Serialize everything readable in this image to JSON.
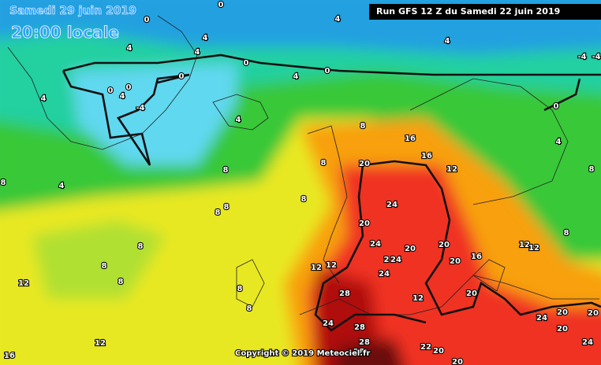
{
  "header": {
    "date": "Samedi 29 juin 2019",
    "time": "20:00 locale",
    "run": "Run GFS 12 Z du Samedi 22 juin 2019"
  },
  "footer": {
    "copyright": "Copyright © 2019 Meteociel.fr"
  },
  "contour_labels": [
    "0",
    "0",
    "4",
    "4",
    "4",
    "4",
    "4",
    "-4",
    "-4",
    "0",
    "0",
    "4",
    "0",
    "0",
    "0",
    "4",
    "-4",
    "4",
    "4",
    "8",
    "16",
    "0",
    "4",
    "8",
    "16",
    "20",
    "12",
    "8",
    "8",
    "4",
    "8",
    "24",
    "8",
    "8",
    "20",
    "8",
    "8",
    "8",
    "12",
    "12",
    "24",
    "20",
    "20",
    "16",
    "20",
    "2",
    "24",
    "12",
    "12",
    "24",
    "8",
    "8",
    "8",
    "12",
    "12",
    "20",
    "28",
    "8",
    "24",
    "28",
    "24",
    "20",
    "20",
    "28",
    "28",
    "12",
    "16",
    "20",
    "24",
    "22",
    "20",
    "20"
  ]
}
